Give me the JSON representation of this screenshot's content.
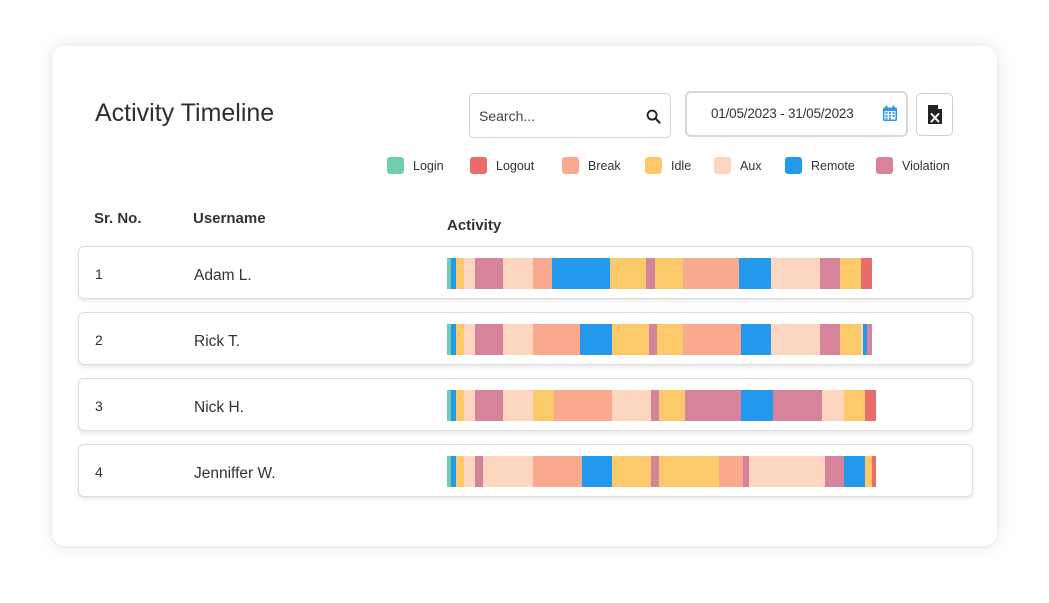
{
  "header": {
    "title": "Activity Timeline"
  },
  "search": {
    "placeholder": "Search..."
  },
  "date_range": {
    "value": "01/05/2023 - 31/05/2023"
  },
  "export": {
    "icon": "excel-icon"
  },
  "colors": {
    "login": "#6fcfad",
    "logout": "#ec6c6c",
    "break": "#f9a98e",
    "idle": "#fcc96b",
    "aux": "#fdd6bf",
    "remote": "#2399ee",
    "violation": "#d6839b"
  },
  "legend": [
    {
      "key": "login",
      "label": "Login"
    },
    {
      "key": "logout",
      "label": "Logout"
    },
    {
      "key": "break",
      "label": "Break"
    },
    {
      "key": "idle",
      "label": "Idle"
    },
    {
      "key": "aux",
      "label": "Aux"
    },
    {
      "key": "remote",
      "label": "Remote"
    },
    {
      "key": "violation",
      "label": "Violation"
    }
  ],
  "table": {
    "columns": {
      "sr": "Sr. No.",
      "username": "Username",
      "activity": "Activity"
    },
    "rows": [
      {
        "sr": "1",
        "username": "Adam L.",
        "segments": [
          [
            "login",
            1
          ],
          [
            "remote",
            1
          ],
          [
            "idle",
            2
          ],
          [
            "aux",
            2.5
          ],
          [
            "violation",
            6.5
          ],
          [
            "aux",
            7
          ],
          [
            "break",
            4.5
          ],
          [
            "remote",
            13.5
          ],
          [
            "idle",
            8.5
          ],
          [
            "violation",
            2
          ],
          [
            "idle",
            6.5
          ],
          [
            "break",
            13
          ],
          [
            "remote",
            7.5
          ],
          [
            "aux",
            11.5
          ],
          [
            "violation",
            4.5
          ],
          [
            "idle",
            5
          ],
          [
            "logout",
            2.5
          ]
        ]
      },
      {
        "sr": "2",
        "username": "Rick T.",
        "segments": [
          [
            "login",
            1
          ],
          [
            "remote",
            1
          ],
          [
            "idle",
            2
          ],
          [
            "aux",
            2.5
          ],
          [
            "violation",
            6.5
          ],
          [
            "aux",
            7
          ],
          [
            "break",
            11
          ],
          [
            "remote",
            7.5
          ],
          [
            "idle",
            8.5
          ],
          [
            "violation",
            2
          ],
          [
            "idle",
            6
          ],
          [
            "break",
            13.5
          ],
          [
            "remote",
            7
          ],
          [
            "aux",
            11.5
          ],
          [
            "violation",
            4.5
          ],
          [
            "idle",
            5
          ],
          [
            "aux",
            0.5
          ],
          [
            "remote",
            1
          ],
          [
            "violation",
            1
          ]
        ]
      },
      {
        "sr": "3",
        "username": "Nick H.",
        "segments": [
          [
            "login",
            1
          ],
          [
            "remote",
            1
          ],
          [
            "idle",
            2
          ],
          [
            "aux",
            2.5
          ],
          [
            "violation",
            6.5
          ],
          [
            "aux",
            7
          ],
          [
            "idle",
            5
          ],
          [
            "break",
            13.5
          ],
          [
            "aux",
            9
          ],
          [
            "violation",
            2
          ],
          [
            "idle",
            6
          ],
          [
            "violation",
            13
          ],
          [
            "remote",
            7.5
          ],
          [
            "violation",
            11.5
          ],
          [
            "aux",
            5
          ],
          [
            "idle",
            5
          ],
          [
            "logout",
            2.5
          ]
        ]
      },
      {
        "sr": "4",
        "username": "Jenniffer W.",
        "segments": [
          [
            "login",
            1
          ],
          [
            "remote",
            1
          ],
          [
            "idle",
            2
          ],
          [
            "aux",
            2.5
          ],
          [
            "violation",
            2
          ],
          [
            "aux",
            11.5
          ],
          [
            "break",
            11.5
          ],
          [
            "remote",
            7
          ],
          [
            "idle",
            9
          ],
          [
            "violation",
            2
          ],
          [
            "idle",
            14
          ],
          [
            "break",
            5.5
          ],
          [
            "violation",
            1.5
          ],
          [
            "aux",
            17.5
          ],
          [
            "violation",
            4.5
          ],
          [
            "remote",
            5
          ],
          [
            "idle",
            1.5
          ],
          [
            "logout",
            1
          ]
        ]
      }
    ]
  }
}
